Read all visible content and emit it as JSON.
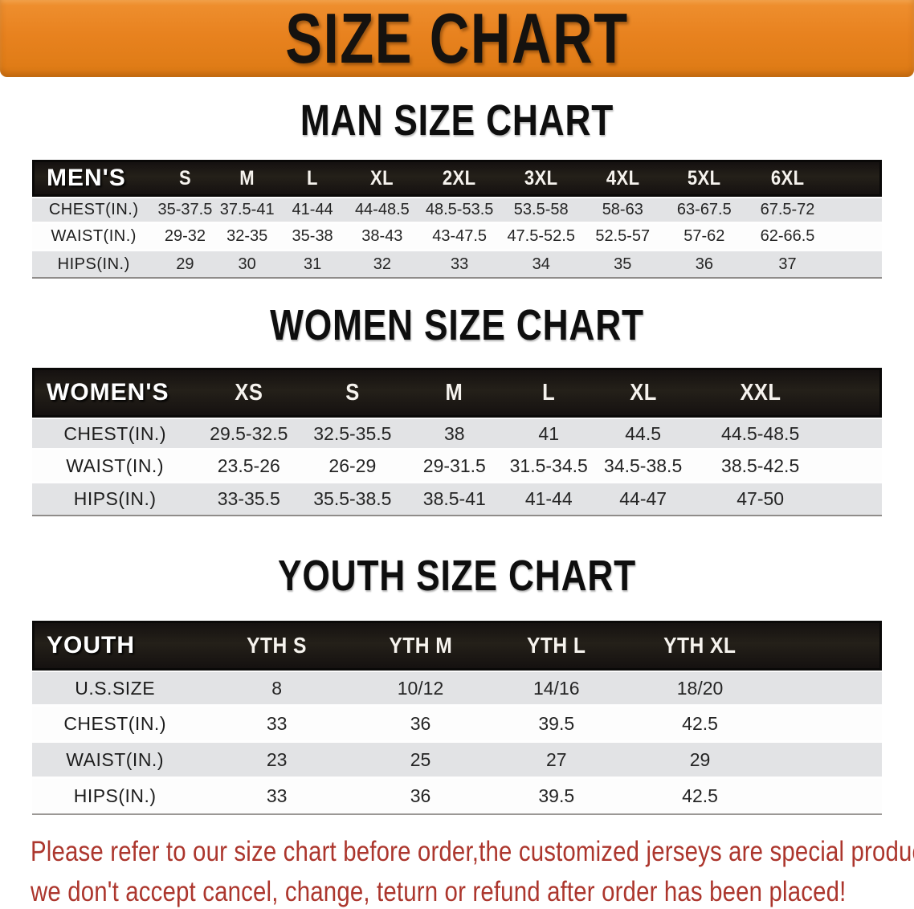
{
  "banner": {
    "title": "SIZE CHART"
  },
  "sections": [
    {
      "id": "men",
      "heading": "MAN SIZE CHART",
      "header_label": "MEN'S",
      "columns": [
        "S",
        "M",
        "L",
        "XL",
        "2XL",
        "3XL",
        "4XL",
        "5XL",
        "6XL"
      ],
      "rows": [
        {
          "label": "CHEST(IN.)",
          "values": [
            "35-37.5",
            "37.5-41",
            "41-44",
            "44-48.5",
            "48.5-53.5",
            "53.5-58",
            "58-63",
            "63-67.5",
            "67.5-72"
          ]
        },
        {
          "label": "WAIST(IN.)",
          "values": [
            "29-32",
            "32-35",
            "35-38",
            "38-43",
            "43-47.5",
            "47.5-52.5",
            "52.5-57",
            "57-62",
            "62-66.5"
          ]
        },
        {
          "label": "HIPS(IN.)",
          "values": [
            "29",
            "30",
            "31",
            "32",
            "33",
            "34",
            "35",
            "36",
            "37"
          ]
        }
      ]
    },
    {
      "id": "women",
      "heading": "WOMEN SIZE CHART",
      "header_label": "WOMEN'S",
      "columns": [
        "XS",
        "S",
        "M",
        "L",
        "XL",
        "XXL"
      ],
      "rows": [
        {
          "label": "CHEST(IN.)",
          "values": [
            "29.5-32.5",
            "32.5-35.5",
            "38",
            "41",
            "44.5",
            "44.5-48.5"
          ]
        },
        {
          "label": "WAIST(IN.)",
          "values": [
            "23.5-26",
            "26-29",
            "29-31.5",
            "31.5-34.5",
            "34.5-38.5",
            "38.5-42.5"
          ]
        },
        {
          "label": "HIPS(IN.)",
          "values": [
            "33-35.5",
            "35.5-38.5",
            "38.5-41",
            "41-44",
            "44-47",
            "47-50"
          ]
        }
      ]
    },
    {
      "id": "youth",
      "heading": "YOUTH SIZE CHART",
      "header_label": "YOUTH",
      "columns": [
        "YTH S",
        "YTH M",
        "YTH L",
        "YTH XL"
      ],
      "rows": [
        {
          "label": "U.S.SIZE",
          "values": [
            "8",
            "10/12",
            "14/16",
            "18/20"
          ]
        },
        {
          "label": "CHEST(IN.)",
          "values": [
            "33",
            "36",
            "39.5",
            "42.5"
          ]
        },
        {
          "label": "WAIST(IN.)",
          "values": [
            "23",
            "25",
            "27",
            "29"
          ]
        },
        {
          "label": "HIPS(IN.)",
          "values": [
            "33",
            "36",
            "39.5",
            "42.5"
          ]
        }
      ]
    }
  ],
  "footer": {
    "line1": "Please refer to our size chart before order,the customized jerseys are special products,",
    "line2": "we don't accept cancel, change, teturn or refund after order has been placed!"
  },
  "colors": {
    "banner_bg": "#E8821F",
    "bar": "#1B1816",
    "row_alt": "#E2E3E5",
    "notice": "#AC362D"
  }
}
